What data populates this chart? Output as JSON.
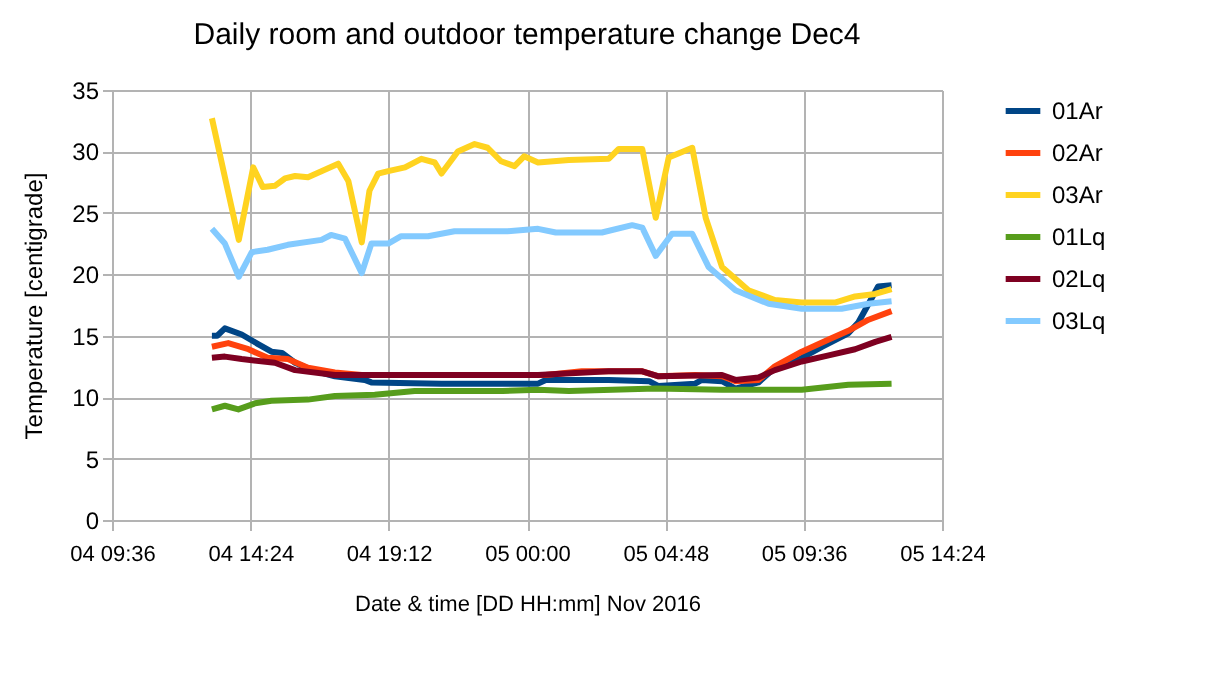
{
  "chart_data": {
    "type": "line",
    "title": "Daily room and outdoor temperature change Dec4",
    "xlabel": "Date & time [DD HH:mm] Nov 2016",
    "ylabel": "Temperature [centigrade]",
    "xlim": [
      "2016-11-04T09:36",
      "2016-11-05T14:24"
    ],
    "xticks": [
      {
        "value": "2016-11-04T09:36",
        "label": "04 09:36"
      },
      {
        "value": "2016-11-04T14:24",
        "label": "04 14:24"
      },
      {
        "value": "2016-11-04T19:12",
        "label": "04 19:12"
      },
      {
        "value": "2016-11-05T00:00",
        "label": "05 00:00"
      },
      {
        "value": "2016-11-05T04:48",
        "label": "05 04:48"
      },
      {
        "value": "2016-11-05T09:36",
        "label": "05 09:36"
      },
      {
        "value": "2016-11-05T14:24",
        "label": "05 14:24"
      }
    ],
    "ylim": [
      0,
      35
    ],
    "yticks": [
      0,
      5,
      10,
      15,
      20,
      25,
      30,
      35
    ],
    "grid": true,
    "legend": "right",
    "marker": "none",
    "line_style": "solid",
    "series": [
      {
        "name": "01Ar",
        "color": "#004586",
        "x": [
          "2016-11-04T13:04",
          "2016-11-04T13:15",
          "2016-11-04T13:31",
          "2016-11-04T14:06",
          "2016-11-04T14:41",
          "2016-11-04T15:08",
          "2016-11-04T15:30",
          "2016-11-04T15:57",
          "2016-11-04T16:32",
          "2016-11-04T17:20",
          "2016-11-04T18:22",
          "2016-11-04T18:36",
          "2016-11-04T21:02",
          "2016-11-05T00:23",
          "2016-11-05T00:39",
          "2016-11-05T02:50",
          "2016-11-05T04:14",
          "2016-11-05T04:34",
          "2016-11-05T05:50",
          "2016-11-05T06:04",
          "2016-11-05T06:46",
          "2016-11-05T07:14",
          "2016-11-05T08:02",
          "2016-11-05T08:36",
          "2016-11-05T09:18",
          "2016-11-05T10:14",
          "2016-11-05T11:09",
          "2016-11-05T11:30",
          "2016-11-05T12:11",
          "2016-11-05T12:39"
        ],
        "values": [
          15.0,
          15.0,
          15.6,
          15.1,
          14.3,
          13.7,
          13.6,
          12.8,
          12.2,
          11.7,
          11.4,
          11.2,
          11.1,
          11.1,
          11.4,
          11.4,
          11.3,
          10.9,
          11.1,
          11.4,
          11.3,
          10.7,
          11.2,
          12.4,
          12.9,
          14.1,
          15.2,
          16.1,
          19.0,
          19.1
        ]
      },
      {
        "name": "02Ar",
        "color": "#ff420e",
        "x": [
          "2016-11-04T13:04",
          "2016-11-04T13:38",
          "2016-11-04T14:20",
          "2016-11-04T15:00",
          "2016-11-04T15:42",
          "2016-11-04T16:24",
          "2016-11-04T17:20",
          "2016-11-04T18:16",
          "2016-11-04T21:02",
          "2016-11-05T00:23",
          "2016-11-05T00:39",
          "2016-11-05T01:54",
          "2016-11-05T04:00",
          "2016-11-05T04:34",
          "2016-11-05T05:50",
          "2016-11-05T06:46",
          "2016-11-05T07:14",
          "2016-11-05T08:02",
          "2016-11-05T08:36",
          "2016-11-05T09:32",
          "2016-11-05T10:28",
          "2016-11-05T11:09",
          "2016-11-05T11:51",
          "2016-11-05T12:39"
        ],
        "values": [
          14.1,
          14.4,
          13.9,
          13.2,
          13.1,
          12.4,
          12.0,
          11.8,
          11.8,
          11.8,
          11.8,
          12.1,
          12.1,
          11.7,
          11.8,
          11.7,
          11.3,
          11.4,
          12.5,
          13.7,
          14.7,
          15.4,
          16.3,
          17.0
        ]
      },
      {
        "name": "03Ar",
        "color": "#ffd320",
        "x": [
          "2016-11-04T13:04",
          "2016-11-04T13:31",
          "2016-11-04T14:00",
          "2016-11-04T14:30",
          "2016-11-04T14:50",
          "2016-11-04T15:15",
          "2016-11-04T15:36",
          "2016-11-04T15:57",
          "2016-11-04T16:24",
          "2016-11-04T16:59",
          "2016-11-04T17:27",
          "2016-11-04T17:48",
          "2016-11-04T18:16",
          "2016-11-04T18:32",
          "2016-11-04T18:50",
          "2016-11-04T19:11",
          "2016-11-04T19:46",
          "2016-11-04T20:20",
          "2016-11-04T20:48",
          "2016-11-04T21:02",
          "2016-11-04T21:36",
          "2016-11-04T22:11",
          "2016-11-04T22:38",
          "2016-11-04T23:06",
          "2016-11-04T23:34",
          "2016-11-04T23:54",
          "2016-11-05T00:23",
          "2016-11-05T01:27",
          "2016-11-05T02:50",
          "2016-11-05T03:11",
          "2016-11-05T04:00",
          "2016-11-05T04:28",
          "2016-11-05T04:55",
          "2016-11-05T05:44",
          "2016-11-05T06:12",
          "2016-11-05T06:46",
          "2016-11-05T07:41",
          "2016-11-05T08:36",
          "2016-11-05T09:32",
          "2016-11-05T10:41",
          "2016-11-05T11:23",
          "2016-11-05T12:05",
          "2016-11-05T12:39"
        ],
        "values": [
          32.7,
          27.9,
          22.8,
          28.7,
          27.1,
          27.2,
          27.8,
          28.0,
          27.9,
          28.5,
          29.0,
          27.6,
          22.6,
          26.8,
          28.2,
          28.4,
          28.7,
          29.4,
          29.1,
          28.2,
          30.0,
          30.6,
          30.3,
          29.2,
          28.8,
          29.6,
          29.1,
          29.3,
          29.4,
          30.2,
          30.2,
          24.6,
          29.5,
          30.3,
          24.6,
          20.6,
          18.7,
          17.9,
          17.7,
          17.7,
          18.2,
          18.4,
          18.8
        ]
      },
      {
        "name": "01Lq",
        "color": "#579d1c",
        "x": [
          "2016-11-04T13:04",
          "2016-11-04T13:31",
          "2016-11-04T13:59",
          "2016-11-04T14:34",
          "2016-11-04T15:08",
          "2016-11-04T16:24",
          "2016-11-04T17:20",
          "2016-11-04T18:43",
          "2016-11-04T20:06",
          "2016-11-04T23:09",
          "2016-11-05T00:23",
          "2016-11-05T01:27",
          "2016-11-05T04:28",
          "2016-11-05T06:46",
          "2016-11-05T09:32",
          "2016-11-05T11:09",
          "2016-11-05T12:39"
        ],
        "values": [
          9.0,
          9.3,
          9.0,
          9.5,
          9.7,
          9.8,
          10.1,
          10.2,
          10.5,
          10.5,
          10.6,
          10.5,
          10.7,
          10.6,
          10.6,
          11.0,
          11.1
        ]
      },
      {
        "name": "02Lq",
        "color": "#7e0021",
        "x": [
          "2016-11-04T13:04",
          "2016-11-04T13:31",
          "2016-11-04T14:06",
          "2016-11-04T15:15",
          "2016-11-04T15:57",
          "2016-11-04T17:20",
          "2016-11-04T21:02",
          "2016-11-05T00:23",
          "2016-11-05T02:50",
          "2016-11-05T04:00",
          "2016-11-05T04:34",
          "2016-11-05T06:46",
          "2016-11-05T07:14",
          "2016-11-05T08:02",
          "2016-11-05T08:36",
          "2016-11-05T09:32",
          "2016-11-05T10:28",
          "2016-11-05T11:23",
          "2016-11-05T12:05",
          "2016-11-05T12:39"
        ],
        "values": [
          13.2,
          13.3,
          13.1,
          12.8,
          12.2,
          11.8,
          11.8,
          11.8,
          12.1,
          12.1,
          11.7,
          11.8,
          11.4,
          11.6,
          12.2,
          12.9,
          13.4,
          13.9,
          14.5,
          14.9
        ]
      },
      {
        "name": "03Lq",
        "color": "#83caff",
        "x": [
          "2016-11-04T13:04",
          "2016-11-04T13:31",
          "2016-11-04T14:00",
          "2016-11-04T14:27",
          "2016-11-04T15:00",
          "2016-11-04T15:42",
          "2016-11-04T16:52",
          "2016-11-04T17:12",
          "2016-11-04T17:41",
          "2016-11-04T18:16",
          "2016-11-04T18:36",
          "2016-11-04T19:11",
          "2016-11-04T19:38",
          "2016-11-04T20:34",
          "2016-11-04T21:29",
          "2016-11-04T23:20",
          "2016-11-05T00:23",
          "2016-11-05T01:00",
          "2016-11-05T02:36",
          "2016-11-05T03:39",
          "2016-11-05T04:00",
          "2016-11-05T04:28",
          "2016-11-05T05:02",
          "2016-11-05T05:44",
          "2016-11-05T06:18",
          "2016-11-05T07:14",
          "2016-11-05T08:23",
          "2016-11-05T09:32",
          "2016-11-05T10:55",
          "2016-11-05T11:51",
          "2016-11-05T12:39"
        ],
        "values": [
          23.7,
          22.5,
          19.8,
          21.8,
          22.0,
          22.4,
          22.8,
          23.2,
          22.9,
          20.1,
          22.5,
          22.5,
          23.1,
          23.1,
          23.5,
          23.5,
          23.7,
          23.4,
          23.4,
          24.0,
          23.8,
          21.5,
          23.3,
          23.3,
          20.6,
          18.7,
          17.6,
          17.2,
          17.2,
          17.6,
          17.8
        ]
      }
    ]
  }
}
